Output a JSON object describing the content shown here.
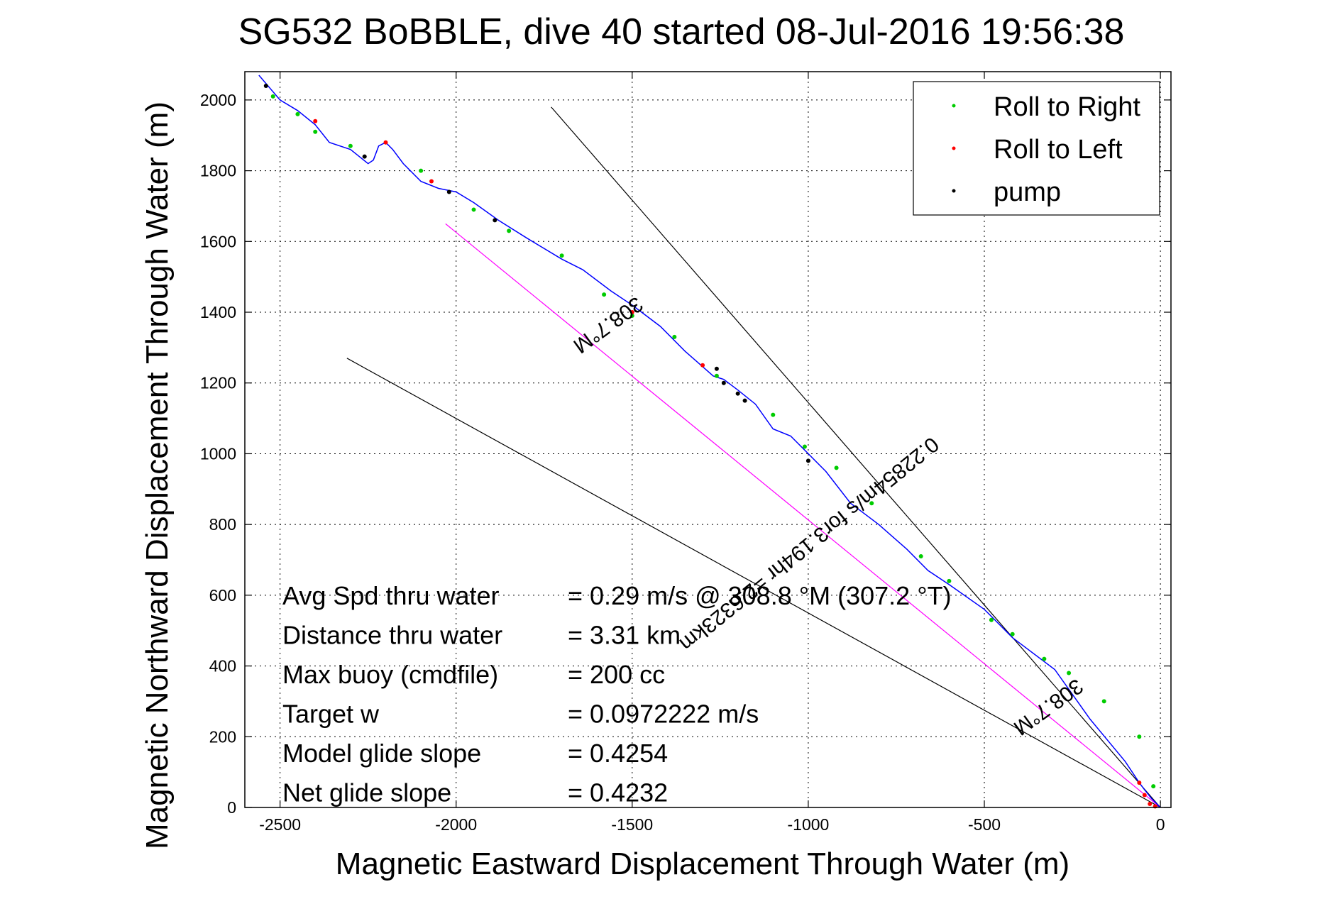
{
  "chart_data": {
    "type": "line",
    "title": "SG532 BoBBLE, dive 40 started 08-Jul-2016 19:56:38",
    "xlabel": "Magnetic Eastward Displacement Through Water (m)",
    "ylabel": "Magnetic Northward Displacement Through Water (m)",
    "xlim": [
      -2600,
      30
    ],
    "ylim": [
      0,
      2080
    ],
    "xticks": [
      -2500,
      -2000,
      -1500,
      -1000,
      -500,
      0
    ],
    "yticks": [
      0,
      200,
      400,
      600,
      800,
      1000,
      1200,
      1400,
      1600,
      1800,
      2000
    ],
    "xtick_labels": [
      "-2500",
      "-2000",
      "-1500",
      "-1000",
      "-500",
      "0"
    ],
    "ytick_labels": [
      "0",
      "200",
      "400",
      "600",
      "800",
      "1000",
      "1200",
      "1400",
      "1600",
      "1800",
      "2000"
    ],
    "grid": true,
    "legend_placement": "top-right",
    "legend": [
      {
        "label": "Roll to Right",
        "color": "#00cc00"
      },
      {
        "label": "Roll to Left",
        "color": "#ff0000"
      },
      {
        "label": "pump",
        "color": "#000000"
      }
    ],
    "track_color": "#0000ff",
    "track": {
      "x": [
        0,
        -10,
        -25,
        -45,
        -60,
        -100,
        -200,
        -300,
        -420,
        -500,
        -600,
        -660,
        -720,
        -800,
        -880,
        -950,
        -1000,
        -1050,
        -1100,
        -1150,
        -1200,
        -1240,
        -1270,
        -1350,
        -1420,
        -1500,
        -1560,
        -1640,
        -1700,
        -1800,
        -1880,
        -1950,
        -2000,
        -2050,
        -2100,
        -2150,
        -2180,
        -2200,
        -2220,
        -2235,
        -2250,
        -2300,
        -2360,
        -2400,
        -2450,
        -2500,
        -2560
      ],
      "y": [
        0,
        10,
        25,
        50,
        70,
        130,
        250,
        390,
        480,
        560,
        630,
        670,
        730,
        800,
        860,
        950,
        1000,
        1050,
        1070,
        1140,
        1180,
        1210,
        1220,
        1290,
        1360,
        1420,
        1460,
        1520,
        1550,
        1610,
        1660,
        1710,
        1740,
        1750,
        1770,
        1820,
        1860,
        1880,
        1870,
        1830,
        1820,
        1860,
        1880,
        1930,
        1970,
        2000,
        2070
      ]
    },
    "roll_to_right": {
      "x": [
        -2520,
        -2450,
        -2400,
        -2300,
        -2100,
        -1950,
        -1850,
        -1700,
        -1580,
        -1500,
        -1380,
        -1260,
        -1100,
        -1010,
        -920,
        -820,
        -680,
        -600,
        -480,
        -420,
        -330,
        -260,
        -160,
        -60,
        -20
      ],
      "y": [
        2010,
        1960,
        1910,
        1870,
        1800,
        1690,
        1630,
        1560,
        1450,
        1390,
        1330,
        1220,
        1110,
        1020,
        960,
        860,
        710,
        640,
        530,
        490,
        420,
        380,
        300,
        200,
        60
      ]
    },
    "roll_to_left": {
      "x": [
        -2400,
        -2200,
        -2070,
        -1500,
        -1300,
        -60,
        -45,
        -30,
        -15
      ],
      "y": [
        1940,
        1880,
        1770,
        1400,
        1250,
        70,
        35,
        10,
        3
      ]
    },
    "pump": {
      "x": [
        -2540,
        -2260,
        -2020,
        -1890,
        -1260,
        -1240,
        -1200,
        -1180,
        -1000
      ],
      "y": [
        2040,
        1840,
        1740,
        1660,
        1240,
        1200,
        1170,
        1150,
        980
      ]
    },
    "reference_lines": [
      {
        "x": [
          -1730,
          0
        ],
        "y": [
          1980,
          0
        ],
        "color": "#000000"
      },
      {
        "x": [
          -2310,
          0
        ],
        "y": [
          1270,
          0
        ],
        "color": "#000000"
      },
      {
        "x": [
          -2030,
          0
        ],
        "y": [
          1650,
          0
        ],
        "color": "#ff00ff"
      }
    ],
    "annotations": [
      {
        "text": "308.7°M",
        "x": -1580,
        "y": 1380,
        "rotation": 144
      },
      {
        "text": "0.22854m/s for3.194hr =2.6323km",
        "x": -1010,
        "y": 760,
        "rotation": 141
      },
      {
        "text": "308.7°M",
        "x": -330,
        "y": 300,
        "rotation": 144
      }
    ],
    "stats": [
      {
        "label": "Avg Spd thru water",
        "value": "=  0.29 m/s @ 308.8  °M (307.2  °T)"
      },
      {
        "label": "Distance thru water",
        "value": "=  3.31 km"
      },
      {
        "label": "Max buoy (cmdfile)",
        "value": "= 200 cc"
      },
      {
        "label": "Target w",
        "value": "= 0.0972222 m/s"
      },
      {
        "label": "Model glide slope",
        "value": "= 0.4254"
      },
      {
        "label": "Net glide slope",
        "value": "= 0.4232"
      }
    ]
  }
}
